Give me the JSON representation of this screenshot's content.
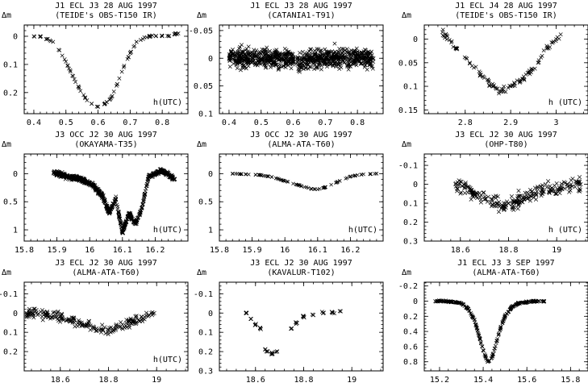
{
  "chart_data": [
    {
      "type": "scatter",
      "title": "J1 ECL J3 28 AUG 1997",
      "subtitle": "(TEIDE's OBS-T150 IR)",
      "ylabel": "Δm",
      "xlabel": "h(UTC)",
      "xlim": [
        0.37,
        0.88
      ],
      "ylim": [
        -0.04,
        0.275
      ],
      "y_inverted": true,
      "xticks": [
        0.4,
        0.5,
        0.6,
        0.7,
        0.8
      ],
      "xtick_labels": [
        "0.4",
        "0.5",
        "0.6",
        "0.7",
        "0.8"
      ],
      "yticks": [
        0,
        0.1,
        0.2
      ],
      "ytick_labels": [
        "0",
        "0.1",
        "0.2"
      ],
      "series": [
        {
          "x": [
            0.4,
            0.42,
            0.44,
            0.46,
            0.48,
            0.5,
            0.52,
            0.54,
            0.56,
            0.58,
            0.6,
            0.62,
            0.64,
            0.66,
            0.68,
            0.7,
            0.72,
            0.74,
            0.76,
            0.78,
            0.8,
            0.82,
            0.84,
            0.85
          ],
          "y": [
            0.0,
            0.0,
            0.01,
            0.02,
            0.05,
            0.09,
            0.14,
            0.18,
            0.22,
            0.24,
            0.25,
            0.24,
            0.22,
            0.17,
            0.11,
            0.06,
            0.02,
            0.01,
            0.0,
            0.0,
            0.0,
            0.0,
            -0.01,
            -0.01
          ]
        }
      ]
    },
    {
      "type": "scatter",
      "title": "J1 ECL J3 28 AUG 1997",
      "subtitle": "(CATANIA1-T91)",
      "ylabel": "Δm",
      "xlabel": "",
      "xlim": [
        0.37,
        0.88
      ],
      "ylim": [
        -0.06,
        0.1
      ],
      "y_inverted": true,
      "xticks": [
        0.4,
        0.5,
        0.6,
        0.7,
        0.8
      ],
      "xtick_labels": [
        "0.4",
        "0.5",
        "0.6",
        "0.7",
        "0.8"
      ],
      "yticks": [
        -0.05,
        0,
        0.05,
        0.1
      ],
      "ytick_labels": [
        "-0.05",
        "0",
        "0.05",
        "0.1"
      ],
      "series": [
        {
          "x": [
            0.4,
            0.45,
            0.5,
            0.55,
            0.6,
            0.61,
            0.62,
            0.65,
            0.7,
            0.75,
            0.8,
            0.85
          ],
          "y": [
            0.0,
            0.0,
            0.0,
            0.0,
            0.0,
            0.01,
            0.01,
            0.0,
            0.0,
            0.0,
            0.0,
            0.0
          ]
        }
      ]
    },
    {
      "type": "scatter",
      "title": "J1 ECL J4 28 AUG 1997",
      "subtitle": "(TEIDE's OBS-T150 IR)",
      "ylabel": "Δm",
      "xlabel": "h (UTC)",
      "xlim": [
        2.71,
        3.07
      ],
      "ylim": [
        -0.03,
        0.158
      ],
      "y_inverted": true,
      "xticks": [
        2.8,
        2.9,
        3.0
      ],
      "xtick_labels": [
        "2.8",
        "2.9",
        "3"
      ],
      "yticks": [
        0,
        0.05,
        0.1,
        0.15
      ],
      "ytick_labels": [
        "0",
        "0.05",
        "0.1",
        "0.15"
      ],
      "series": [
        {
          "x": [
            2.75,
            2.78,
            2.81,
            2.84,
            2.86,
            2.88,
            2.9,
            2.92,
            2.94,
            2.96,
            2.98,
            3.0,
            3.01
          ],
          "y": [
            -0.015,
            0.02,
            0.05,
            0.08,
            0.1,
            0.11,
            0.1,
            0.09,
            0.07,
            0.05,
            0.02,
            0.0,
            -0.01
          ]
        }
      ]
    },
    {
      "type": "scatter",
      "title": "J3 OCC J2 30 AUG 1997",
      "subtitle": "(OKAYAMA-T35)",
      "ylabel": "Δm",
      "xlabel": "h(UTC)",
      "xlim": [
        15.8,
        16.3
      ],
      "ylim": [
        -0.35,
        1.2
      ],
      "y_inverted": true,
      "xticks": [
        15.8,
        15.9,
        16.0,
        16.1,
        16.2
      ],
      "xtick_labels": [
        "15.8",
        "15.9",
        "16",
        "16.1",
        "16.2"
      ],
      "yticks": [
        0,
        0.5,
        1
      ],
      "ytick_labels": [
        "0",
        "0.5",
        "1"
      ],
      "series": [
        {
          "x": [
            15.89,
            15.93,
            15.97,
            16.01,
            16.04,
            16.06,
            16.08,
            16.1,
            16.12,
            16.14,
            16.16,
            16.18,
            16.22,
            16.26
          ],
          "y": [
            -0.02,
            0.05,
            0.1,
            0.2,
            0.4,
            0.7,
            0.45,
            1.05,
            0.7,
            0.9,
            0.6,
            0.05,
            -0.05,
            0.1
          ]
        }
      ]
    },
    {
      "type": "scatter",
      "title": "J3 OCC J2 30 AUG 1997",
      "subtitle": "(ALMA-ATA-T60)",
      "ylabel": "Δm",
      "xlabel": "h(UTC)",
      "xlim": [
        15.8,
        16.3
      ],
      "ylim": [
        -0.35,
        1.2
      ],
      "y_inverted": true,
      "xticks": [
        15.8,
        15.9,
        16.0,
        16.1,
        16.2
      ],
      "xtick_labels": [
        "15.8",
        "15.9",
        "16",
        "16.1",
        "16.2"
      ],
      "yticks": [
        0,
        0.5,
        1
      ],
      "ytick_labels": [
        "0",
        "0.5",
        "1"
      ],
      "series": [
        {
          "x": [
            15.84,
            15.88,
            15.92,
            15.96,
            16.0,
            16.04,
            16.08,
            16.1,
            16.12,
            16.16,
            16.2,
            16.24,
            16.28
          ],
          "y": [
            0.0,
            0.01,
            0.02,
            0.06,
            0.13,
            0.2,
            0.27,
            0.28,
            0.25,
            0.15,
            0.05,
            0.01,
            0.0
          ]
        }
      ]
    },
    {
      "type": "scatter",
      "title": "J3 ECL J2 30 AUG 1997",
      "subtitle": "(OHP-T80)",
      "ylabel": "Δm",
      "xlabel": "h (UTC)",
      "xlim": [
        18.45,
        19.13
      ],
      "ylim": [
        -0.16,
        0.3
      ],
      "y_inverted": true,
      "xticks": [
        18.6,
        18.8,
        19.0
      ],
      "xtick_labels": [
        "18.6",
        "18.8",
        "19"
      ],
      "yticks": [
        -0.1,
        0,
        0.1,
        0.2,
        0.3
      ],
      "ytick_labels": [
        "-0.1",
        "0",
        "0.1",
        "0.2",
        "0.3"
      ],
      "series": [
        {
          "x": [
            18.58,
            18.62,
            18.66,
            18.7,
            18.74,
            18.78,
            18.82,
            18.86,
            18.9,
            18.94,
            18.98,
            19.02,
            19.06,
            19.1
          ],
          "y": [
            0.0,
            0.02,
            0.05,
            0.08,
            0.1,
            0.12,
            0.1,
            0.07,
            0.05,
            0.03,
            0.02,
            0.01,
            0.0,
            0.0
          ]
        }
      ]
    },
    {
      "type": "scatter",
      "title": "J3 ECL J2 30 AUG 1997",
      "subtitle": "(ALMA-ATA-T60)",
      "ylabel": "Δm",
      "xlabel": "h(UTC)",
      "xlim": [
        18.45,
        19.13
      ],
      "ylim": [
        -0.16,
        0.3
      ],
      "y_inverted": true,
      "xticks": [
        18.6,
        18.8,
        19.0
      ],
      "xtick_labels": [
        "18.6",
        "18.8",
        "19"
      ],
      "yticks": [
        -0.1,
        0,
        0.1,
        0.2
      ],
      "ytick_labels": [
        "-0.1",
        "0",
        "0.1",
        "0.2"
      ],
      "series": [
        {
          "x": [
            18.46,
            18.5,
            18.55,
            18.6,
            18.65,
            18.7,
            18.75,
            18.8,
            18.85,
            18.9,
            18.95,
            18.99
          ],
          "y": [
            0.0,
            0.0,
            0.01,
            0.02,
            0.04,
            0.06,
            0.08,
            0.09,
            0.07,
            0.04,
            0.02,
            0.0
          ]
        }
      ]
    },
    {
      "type": "scatter",
      "title": "J3 ECL J2 30 AUG 1997",
      "subtitle": "(KAVALUR-T102)",
      "ylabel": "Δm",
      "xlabel": "",
      "xlim": [
        18.45,
        19.13
      ],
      "ylim": [
        -0.16,
        0.3
      ],
      "y_inverted": true,
      "xticks": [
        18.6,
        18.8,
        19.0
      ],
      "xtick_labels": [
        "18.6",
        "18.8",
        "19"
      ],
      "yticks": [
        -0.1,
        0,
        0.1,
        0.2,
        0.3
      ],
      "ytick_labels": [
        "-0.1",
        "0",
        "0.1",
        "0.2",
        "0.3"
      ],
      "series": [
        {
          "x": [
            18.56,
            18.58,
            18.6,
            18.62,
            18.64,
            18.65,
            18.67,
            18.69,
            18.75,
            18.77,
            18.8,
            18.84,
            18.88,
            18.92,
            18.95
          ],
          "y": [
            0.0,
            0.03,
            0.06,
            0.08,
            0.19,
            0.2,
            0.21,
            0.2,
            0.08,
            0.05,
            0.02,
            0.01,
            0.0,
            0.0,
            -0.01
          ]
        }
      ]
    },
    {
      "type": "scatter",
      "title": "J1 ECL J3 3 SEP 1997",
      "subtitle": "(ALMA-ATA-T60)",
      "ylabel": "Δm",
      "xlabel": "",
      "xlim": [
        15.13,
        15.88
      ],
      "ylim": [
        -0.25,
        0.92
      ],
      "y_inverted": true,
      "xticks": [
        15.2,
        15.4,
        15.6,
        15.8
      ],
      "xtick_labels": [
        "15.2",
        "15.4",
        "15.6",
        "15.8"
      ],
      "yticks": [
        -0.2,
        0,
        0.2,
        0.4,
        0.6,
        0.8
      ],
      "ytick_labels": [
        "-0.2",
        "0",
        "0.2",
        "0.4",
        "0.6",
        "0.8"
      ],
      "series": [
        {
          "x": [
            15.18,
            15.22,
            15.26,
            15.3,
            15.33,
            15.36,
            15.38,
            15.4,
            15.42,
            15.44,
            15.46,
            15.48,
            15.5,
            15.53,
            15.56,
            15.6,
            15.64,
            15.68
          ],
          "y": [
            0.0,
            0.0,
            0.01,
            0.03,
            0.1,
            0.25,
            0.45,
            0.65,
            0.8,
            0.75,
            0.55,
            0.35,
            0.2,
            0.08,
            0.03,
            0.01,
            0.0,
            0.0
          ]
        }
      ]
    }
  ]
}
